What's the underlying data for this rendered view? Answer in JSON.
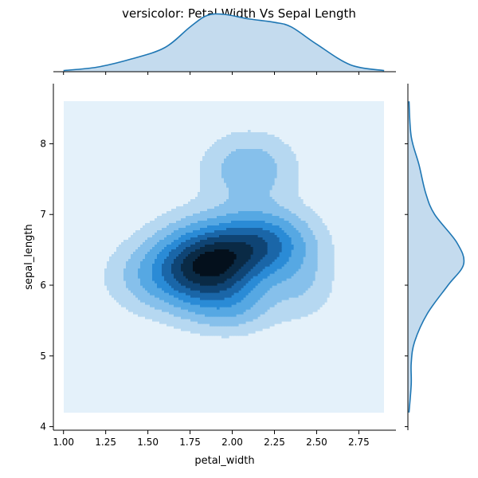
{
  "chart_data": {
    "type": "kde-joint",
    "title": "versicolor: Petal Width Vs Sepal Length",
    "xlabel": "petal_width",
    "ylabel": "sepal_length",
    "xlim": [
      0.94,
      2.97
    ],
    "ylim": [
      3.95,
      8.85
    ],
    "xticks": [
      1.0,
      1.25,
      1.5,
      1.75,
      2.0,
      2.25,
      2.5,
      2.75
    ],
    "xtick_labels": [
      "1.00",
      "1.25",
      "1.50",
      "1.75",
      "2.00",
      "2.25",
      "2.50",
      "2.75"
    ],
    "yticks": [
      4,
      5,
      6,
      7,
      8
    ],
    "ytick_labels": [
      "4",
      "5",
      "6",
      "7",
      "8"
    ],
    "density_region": {
      "x": [
        1.0,
        2.9
      ],
      "y": [
        4.2,
        8.6
      ]
    },
    "kde_levels": 8,
    "colors": {
      "levels": [
        "#e4f1fa",
        "#b6d8f1",
        "#86c0eb",
        "#56a8e3",
        "#2a8bd6",
        "#1a66a8",
        "#0f4474",
        "#0a2a45",
        "#04101c"
      ],
      "marginal_line": "#1f77b4",
      "marginal_fill": "#c4dbee",
      "axis": "#000000"
    },
    "marginal_x": {
      "x": [
        1.0,
        1.2,
        1.4,
        1.6,
        1.75,
        1.85,
        1.95,
        2.1,
        2.25,
        2.35,
        2.5,
        2.7,
        2.9
      ],
      "density": [
        0.02,
        0.08,
        0.22,
        0.42,
        0.78,
        0.98,
        1.0,
        0.92,
        0.86,
        0.78,
        0.48,
        0.12,
        0.02
      ]
    },
    "marginal_y": {
      "y": [
        4.2,
        4.6,
        4.9,
        5.2,
        5.6,
        6.0,
        6.3,
        6.6,
        7.0,
        7.3,
        7.7,
        8.1,
        8.6
      ],
      "density": [
        0.02,
        0.06,
        0.06,
        0.12,
        0.35,
        0.72,
        1.0,
        0.88,
        0.48,
        0.32,
        0.2,
        0.06,
        0.02
      ]
    },
    "components": [
      {
        "x": 1.86,
        "y": 6.28,
        "sx": 0.22,
        "sy": 0.4,
        "w": 1.0
      },
      {
        "x": 2.2,
        "y": 6.62,
        "sx": 0.2,
        "sy": 0.32,
        "w": 0.55
      },
      {
        "x": 2.1,
        "y": 7.65,
        "sx": 0.19,
        "sy": 0.35,
        "w": 0.32
      },
      {
        "x": 1.52,
        "y": 6.1,
        "sx": 0.2,
        "sy": 0.34,
        "w": 0.22
      },
      {
        "x": 2.42,
        "y": 6.0,
        "sx": 0.14,
        "sy": 0.35,
        "w": 0.18
      },
      {
        "x": 2.0,
        "y": 5.65,
        "sx": 0.18,
        "sy": 0.25,
        "w": 0.2
      }
    ]
  }
}
